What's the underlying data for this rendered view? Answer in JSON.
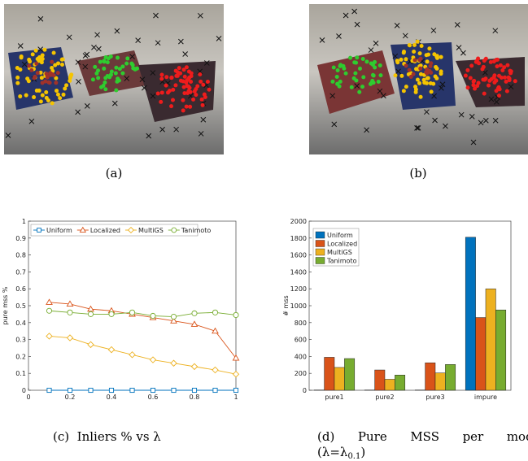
{
  "panels": {
    "a": {
      "caption": "(a)"
    },
    "b": {
      "caption": "(b)"
    },
    "c": {
      "caption": "(c)  Inliers % vs λ"
    },
    "d": {
      "caption": "(d)      Pure      MSS      per      model",
      "caption2": "(λ=λ",
      "caption2_sub": "0.1",
      "caption2_end": ")"
    }
  },
  "chart_data": [
    {
      "type": "line",
      "ylabel": "pure mss %",
      "x": [
        0.1,
        0.2,
        0.3,
        0.4,
        0.5,
        0.6,
        0.7,
        0.8,
        0.9,
        1.0
      ],
      "xlim": [
        0,
        1
      ],
      "xticks": [
        0,
        0.2,
        0.4,
        0.6,
        0.8,
        1
      ],
      "ylim": [
        0,
        1
      ],
      "yticks": [
        0,
        0.1,
        0.2,
        0.3,
        0.4,
        0.5,
        0.6,
        0.7,
        0.8,
        0.9,
        1
      ],
      "legend": "top",
      "series": [
        {
          "name": "Uniform",
          "color": "#0072bd",
          "marker": "square",
          "values": [
            0,
            0,
            0,
            0,
            0,
            0,
            0,
            0,
            0,
            0
          ]
        },
        {
          "name": "Localized",
          "color": "#d95319",
          "marker": "triangle",
          "values": [
            0.52,
            0.51,
            0.48,
            0.47,
            0.45,
            0.43,
            0.41,
            0.39,
            0.35,
            0.19
          ]
        },
        {
          "name": "MultiGS",
          "color": "#edb120",
          "marker": "diamond",
          "values": [
            0.32,
            0.31,
            0.27,
            0.24,
            0.21,
            0.18,
            0.16,
            0.14,
            0.12,
            0.095
          ]
        },
        {
          "name": "Tanimoto",
          "color": "#77ac30",
          "marker": "circle",
          "values": [
            0.47,
            0.46,
            0.45,
            0.45,
            0.46,
            0.44,
            0.435,
            0.455,
            0.46,
            0.445
          ]
        }
      ]
    },
    {
      "type": "bar",
      "ylabel": "# mss",
      "categories": [
        "pure1",
        "pure2",
        "pure3",
        "impure"
      ],
      "ylim": [
        0,
        2000
      ],
      "yticks": [
        0,
        200,
        400,
        600,
        800,
        1000,
        1200,
        1400,
        1600,
        1800,
        2000
      ],
      "legend": "upper left",
      "series": [
        {
          "name": "Uniform",
          "color": "#0072bd",
          "values": [
            3,
            3,
            3,
            1810
          ]
        },
        {
          "name": "Localized",
          "color": "#d95319",
          "values": [
            390,
            240,
            325,
            860
          ]
        },
        {
          "name": "MultiGS",
          "color": "#edb120",
          "values": [
            270,
            130,
            205,
            1200
          ]
        },
        {
          "name": "Tanimoto",
          "color": "#77ac30",
          "values": [
            375,
            180,
            305,
            950
          ]
        }
      ]
    }
  ]
}
